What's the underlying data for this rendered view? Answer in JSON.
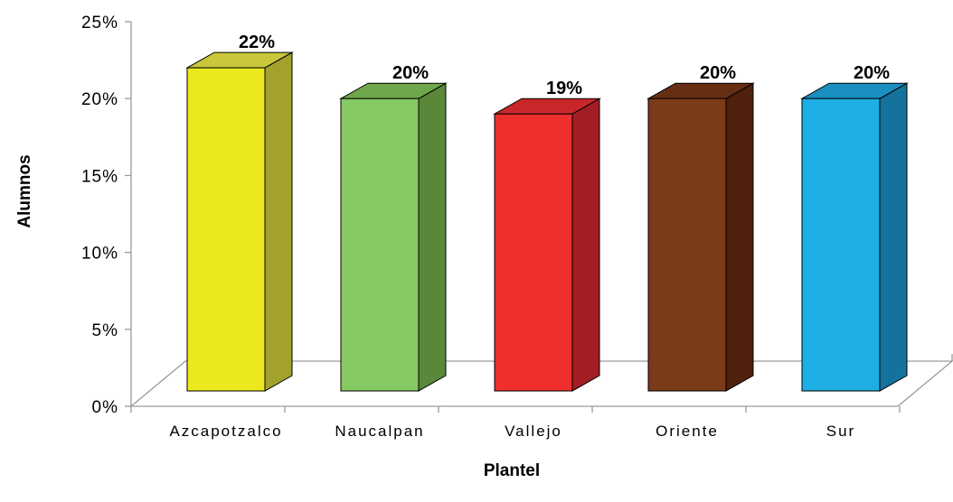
{
  "chart_data": {
    "type": "bar",
    "categories": [
      "Azcapotzalco",
      "Naucalpan",
      "Vallejo",
      "Oriente",
      "Sur"
    ],
    "values": [
      22,
      20,
      19,
      20,
      20
    ],
    "data_labels": [
      "22%",
      "20%",
      "19%",
      "20%",
      "20%"
    ],
    "ylabel": "Alumnos",
    "xlabel": "Plantel",
    "ylim": [
      0,
      25
    ],
    "yticks": [
      "0%",
      "5%",
      "10%",
      "15%",
      "20%",
      "25%"
    ],
    "grid": false,
    "legend": "none",
    "style": "3d-column",
    "colors": [
      {
        "front": "#ECE81E",
        "side": "#A3A22C",
        "top": "#C9C73A"
      },
      {
        "front": "#86C862",
        "side": "#5A873A",
        "top": "#6FA84B"
      },
      {
        "front": "#EE2F2E",
        "side": "#A21E22",
        "top": "#C8272A"
      },
      {
        "front": "#7B3A18",
        "side": "#4F200E",
        "top": "#662E13"
      },
      {
        "front": "#1DAEE4",
        "side": "#14739C",
        "top": "#1A8FC0"
      }
    ]
  }
}
